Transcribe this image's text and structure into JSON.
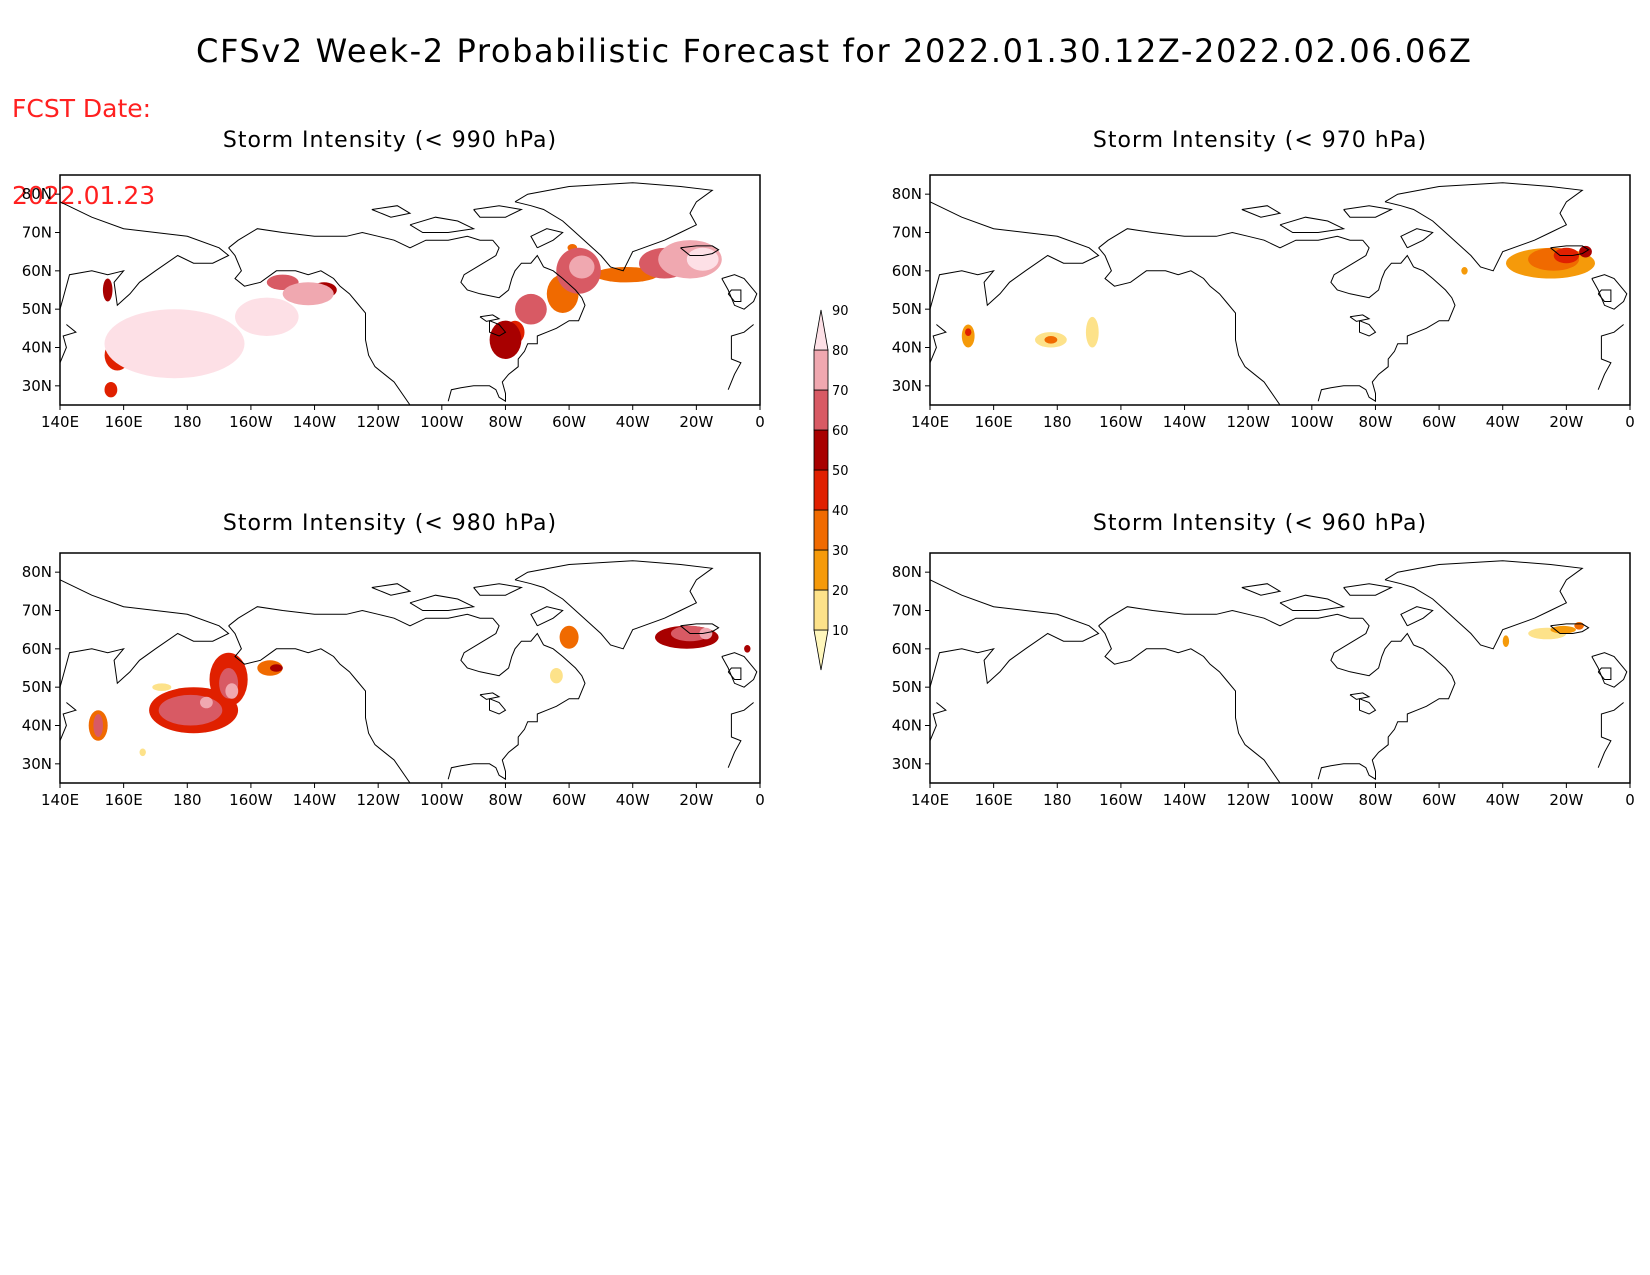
{
  "header": {
    "fcst_label": "FCST Date:",
    "fcst_date": "2022.01.23",
    "title": "CFSv2 Week-2 Probabilistic Forecast for 2022.01.30.12Z-2022.02.06.06Z"
  },
  "axes": {
    "lat_labels": [
      "80N",
      "70N",
      "60N",
      "50N",
      "40N",
      "30N"
    ],
    "lat_values": [
      80,
      70,
      60,
      50,
      40,
      30
    ],
    "lon_labels": [
      "140E",
      "160E",
      "180",
      "160W",
      "140W",
      "120W",
      "100W",
      "80W",
      "60W",
      "40W",
      "20W",
      "0"
    ],
    "lon_values": [
      140,
      160,
      180,
      200,
      220,
      240,
      260,
      280,
      300,
      320,
      340,
      360
    ],
    "lon_range": [
      140,
      360
    ],
    "lat_range": [
      25,
      85
    ]
  },
  "colorbar": {
    "levels": [
      10,
      20,
      30,
      40,
      50,
      60,
      70,
      80,
      90
    ],
    "labels": [
      "10",
      "20",
      "30",
      "40",
      "50",
      "60",
      "70",
      "80",
      "90"
    ],
    "colors": [
      "#fff7bc",
      "#fde28a",
      "#f59a0a",
      "#f06a00",
      "#e02000",
      "#a80000",
      "#d85a64",
      "#f0a8b0",
      "#fde0e6"
    ]
  },
  "panels": [
    {
      "id": "p990",
      "title": "Storm Intensity (< 990 hPa)",
      "blobs": [
        {
          "lon": 176,
          "lat": 41,
          "rlon": 22,
          "rlat": 9,
          "level": 8
        },
        {
          "lon": 176,
          "lat": 41,
          "rlon": 17,
          "rlat": 6,
          "level": 7
        },
        {
          "lon": 165,
          "lat": 42,
          "rlon": 7,
          "rlat": 5,
          "level": 6
        },
        {
          "lon": 186,
          "lat": 38,
          "rlon": 5,
          "rlat": 3,
          "level": 5
        },
        {
          "lon": 158,
          "lat": 38,
          "rlon": 4,
          "rlat": 4,
          "level": 4
        },
        {
          "lon": 205,
          "lat": 48,
          "rlon": 10,
          "rlat": 5,
          "level": 8
        },
        {
          "lon": 203,
          "lat": 47,
          "rlon": 6,
          "rlat": 3,
          "level": 6
        },
        {
          "lon": 218,
          "lat": 54,
          "rlon": 8,
          "rlat": 3,
          "level": 7
        },
        {
          "lon": 210,
          "lat": 57,
          "rlon": 5,
          "rlat": 2,
          "level": 6
        },
        {
          "lon": 223,
          "lat": 55,
          "rlon": 4,
          "rlat": 2,
          "level": 5
        },
        {
          "lon": 155,
          "lat": 55,
          "rlon": 1.5,
          "rlat": 3,
          "level": 5
        },
        {
          "lon": 156,
          "lat": 29,
          "rlon": 2,
          "rlat": 2,
          "level": 4
        },
        {
          "lon": 280,
          "lat": 42,
          "rlon": 5,
          "rlat": 5,
          "level": 5
        },
        {
          "lon": 283,
          "lat": 44,
          "rlon": 3,
          "rlat": 3,
          "level": 4
        },
        {
          "lon": 288,
          "lat": 50,
          "rlon": 5,
          "rlat": 4,
          "level": 6
        },
        {
          "lon": 298,
          "lat": 54,
          "rlon": 5,
          "rlat": 5,
          "level": 3
        },
        {
          "lon": 303,
          "lat": 60,
          "rlon": 7,
          "rlat": 6,
          "level": 6
        },
        {
          "lon": 304,
          "lat": 61,
          "rlon": 4,
          "rlat": 3,
          "level": 7
        },
        {
          "lon": 301,
          "lat": 66,
          "rlon": 1.5,
          "rlat": 1,
          "level": 3
        },
        {
          "lon": 318,
          "lat": 59,
          "rlon": 10,
          "rlat": 2,
          "level": 3
        },
        {
          "lon": 330,
          "lat": 62,
          "rlon": 8,
          "rlat": 4,
          "level": 6
        },
        {
          "lon": 338,
          "lat": 63,
          "rlon": 10,
          "rlat": 5,
          "level": 7
        },
        {
          "lon": 342,
          "lat": 63,
          "rlon": 5,
          "rlat": 3,
          "level": 8
        }
      ]
    },
    {
      "id": "p970",
      "title": "Storm Intensity (< 970 hPa)",
      "blobs": [
        {
          "lon": 152,
          "lat": 43,
          "rlon": 2,
          "rlat": 3,
          "level": 2
        },
        {
          "lon": 152,
          "lat": 44,
          "rlon": 1,
          "rlat": 1,
          "level": 4
        },
        {
          "lon": 178,
          "lat": 42,
          "rlon": 5,
          "rlat": 2,
          "level": 1
        },
        {
          "lon": 178,
          "lat": 42,
          "rlon": 2,
          "rlat": 1,
          "level": 3
        },
        {
          "lon": 191,
          "lat": 44,
          "rlon": 2,
          "rlat": 4,
          "level": 1
        },
        {
          "lon": 308,
          "lat": 60,
          "rlon": 1,
          "rlat": 1,
          "level": 2
        },
        {
          "lon": 335,
          "lat": 62,
          "rlon": 14,
          "rlat": 4,
          "level": 2
        },
        {
          "lon": 336,
          "lat": 63,
          "rlon": 8,
          "rlat": 3,
          "level": 3
        },
        {
          "lon": 340,
          "lat": 64,
          "rlon": 4,
          "rlat": 2,
          "level": 4
        },
        {
          "lon": 346,
          "lat": 65,
          "rlon": 2,
          "rlat": 1.5,
          "level": 5
        }
      ]
    },
    {
      "id": "p980",
      "title": "Storm Intensity (< 980 hPa)",
      "blobs": [
        {
          "lon": 182,
          "lat": 44,
          "rlon": 14,
          "rlat": 6,
          "level": 4
        },
        {
          "lon": 181,
          "lat": 44,
          "rlon": 10,
          "rlat": 4,
          "level": 6
        },
        {
          "lon": 193,
          "lat": 52,
          "rlon": 6,
          "rlat": 7,
          "level": 4
        },
        {
          "lon": 193,
          "lat": 51,
          "rlon": 3,
          "rlat": 4,
          "level": 6
        },
        {
          "lon": 194,
          "lat": 49,
          "rlon": 2,
          "rlat": 2,
          "level": 7
        },
        {
          "lon": 186,
          "lat": 46,
          "rlon": 2,
          "rlat": 1.5,
          "level": 7
        },
        {
          "lon": 152,
          "lat": 40,
          "rlon": 3,
          "rlat": 4,
          "level": 3
        },
        {
          "lon": 152,
          "lat": 40,
          "rlon": 1.5,
          "rlat": 3,
          "level": 6
        },
        {
          "lon": 166,
          "lat": 33,
          "rlon": 1,
          "rlat": 1,
          "level": 1
        },
        {
          "lon": 172,
          "lat": 50,
          "rlon": 3,
          "rlat": 1,
          "level": 1
        },
        {
          "lon": 206,
          "lat": 55,
          "rlon": 4,
          "rlat": 2,
          "level": 3
        },
        {
          "lon": 208,
          "lat": 55,
          "rlon": 2,
          "rlat": 1,
          "level": 5
        },
        {
          "lon": 300,
          "lat": 63,
          "rlon": 3,
          "rlat": 3,
          "level": 3
        },
        {
          "lon": 296,
          "lat": 53,
          "rlon": 2,
          "rlat": 2,
          "level": 1
        },
        {
          "lon": 337,
          "lat": 63,
          "rlon": 10,
          "rlat": 3,
          "level": 5
        },
        {
          "lon": 338,
          "lat": 64,
          "rlon": 6,
          "rlat": 2,
          "level": 6
        },
        {
          "lon": 343,
          "lat": 64,
          "rlon": 2,
          "rlat": 1.5,
          "level": 7
        },
        {
          "lon": 356,
          "lat": 60,
          "rlon": 1,
          "rlat": 1,
          "level": 5
        }
      ]
    },
    {
      "id": "p960",
      "title": "Storm Intensity (< 960 hPa)",
      "blobs": [
        {
          "lon": 321,
          "lat": 62,
          "rlon": 1,
          "rlat": 1.5,
          "level": 2
        },
        {
          "lon": 334,
          "lat": 64,
          "rlon": 6,
          "rlat": 1.5,
          "level": 1
        },
        {
          "lon": 339,
          "lat": 65,
          "rlon": 4,
          "rlat": 1,
          "level": 2
        },
        {
          "lon": 344,
          "lat": 66,
          "rlon": 1.5,
          "rlat": 1,
          "level": 3
        }
      ]
    }
  ]
}
